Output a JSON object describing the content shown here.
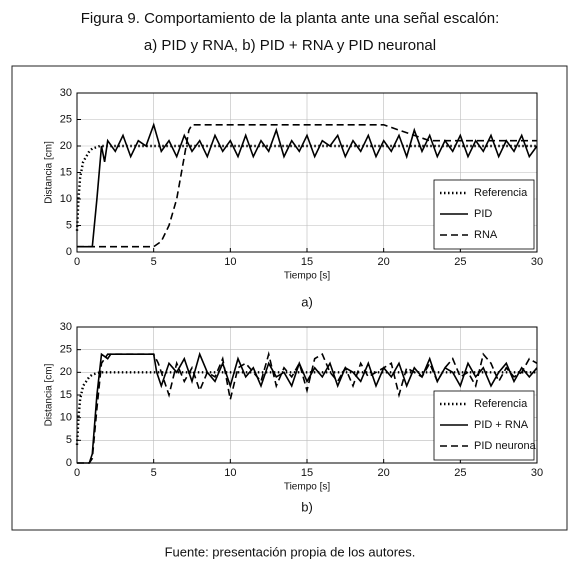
{
  "figure": {
    "title": [
      "Figura 9. Comportamiento de la planta ante una señal escalón:",
      "a) PID y RNA, b) PID + RNA y PID neuronal"
    ],
    "source": "Fuente: presentación propia de los autores."
  },
  "chart_data": [
    {
      "type": "line",
      "caption": "a)",
      "xlabel": "Tiempo [s]",
      "ylabel": "Distancia [cm]",
      "xlim": [
        0,
        30
      ],
      "ylim": [
        0,
        30
      ],
      "xticks": [
        0,
        5,
        10,
        15,
        20,
        25,
        30
      ],
      "yticks": [
        0,
        5,
        10,
        15,
        20,
        25,
        30
      ],
      "grid": true,
      "legend": "lower right",
      "series": [
        {
          "name": "Referencia",
          "color": "#000000",
          "linestyle": "dotted",
          "x": [
            0,
            0.1,
            0.2,
            0.4,
            0.6,
            0.8,
            1,
            1.5,
            2,
            3,
            30
          ],
          "values": [
            4,
            10,
            14,
            17,
            18,
            19,
            19.5,
            20,
            20,
            20,
            20
          ]
        },
        {
          "name": "PID",
          "color": "#000000",
          "linestyle": "solid",
          "x": [
            0,
            1,
            1.3,
            1.6,
            1.8,
            2,
            2.5,
            3,
            3.5,
            4,
            4.5,
            5,
            5.5,
            6,
            6.5,
            7,
            7.5,
            8,
            8.5,
            9,
            9.5,
            10,
            10.5,
            11,
            11.5,
            12,
            12.5,
            13,
            13.5,
            14,
            14.5,
            15,
            15.5,
            16,
            16.5,
            17,
            17.5,
            18,
            18.5,
            19,
            19.5,
            20,
            20.5,
            21,
            21.5,
            22,
            22.5,
            23,
            23.5,
            24,
            24.5,
            25,
            25.5,
            26,
            26.5,
            27,
            27.5,
            28,
            28.5,
            29,
            29.5,
            30
          ],
          "values": [
            1,
            1,
            10,
            20,
            17,
            21,
            19,
            22,
            18,
            21,
            20,
            24,
            19,
            21,
            18,
            22,
            19,
            21,
            18,
            22,
            19,
            21,
            18,
            22,
            18,
            21,
            19,
            23,
            18,
            21,
            19,
            22,
            18,
            21,
            20,
            22,
            18,
            21,
            19,
            22,
            18,
            21,
            19,
            22,
            18,
            23,
            19,
            22,
            18,
            21,
            19,
            22,
            18,
            21,
            19,
            22,
            18,
            21,
            19,
            22,
            18,
            20
          ]
        },
        {
          "name": "RNA",
          "color": "#000000",
          "linestyle": "dashed",
          "x": [
            0,
            5,
            5.5,
            6,
            6.5,
            7,
            7.3,
            7.5,
            20,
            21,
            22,
            23,
            30
          ],
          "values": [
            1,
            1,
            2,
            5,
            10,
            18,
            23,
            24,
            24,
            23,
            22,
            21,
            21
          ]
        }
      ]
    },
    {
      "type": "line",
      "caption": "b)",
      "xlabel": "Tiempo [s]",
      "ylabel": "Distancia [cm]",
      "xlim": [
        0,
        30
      ],
      "ylim": [
        0,
        30
      ],
      "xticks": [
        0,
        5,
        10,
        15,
        20,
        25,
        30
      ],
      "yticks": [
        0,
        5,
        10,
        15,
        20,
        25,
        30
      ],
      "grid": true,
      "legend": "lower right",
      "series": [
        {
          "name": "Referencia",
          "color": "#000000",
          "linestyle": "dotted",
          "x": [
            0,
            0.1,
            0.2,
            0.4,
            0.6,
            0.8,
            1,
            1.5,
            2,
            3,
            30
          ],
          "values": [
            4,
            10,
            14,
            17,
            18,
            19,
            19.5,
            20,
            20,
            20,
            20
          ]
        },
        {
          "name": "PID + RNA",
          "color": "#000000",
          "linestyle": "solid",
          "x": [
            0,
            0.8,
            1,
            1.3,
            1.6,
            2,
            2.2,
            5,
            5.2,
            5.5,
            6,
            6.5,
            7,
            7.5,
            8,
            8.5,
            9,
            9.5,
            10,
            10.5,
            11,
            11.5,
            12,
            12.5,
            13,
            13.5,
            14,
            14.5,
            15,
            15.5,
            16,
            16.5,
            17,
            17.5,
            18,
            18.5,
            19,
            19.5,
            20,
            20.5,
            21,
            21.5,
            22,
            22.5,
            23,
            23.5,
            24,
            24.5,
            25,
            25.5,
            26,
            26.5,
            27,
            27.5,
            28,
            28.5,
            29,
            29.5,
            30
          ],
          "values": [
            0,
            0,
            2,
            15,
            24,
            23,
            24,
            24,
            20,
            17,
            22,
            20,
            23,
            18,
            24,
            20,
            18,
            22,
            17,
            23,
            19,
            21,
            17,
            22,
            19,
            20,
            17,
            22,
            18,
            21,
            19,
            22,
            17,
            21,
            20,
            18,
            22,
            17,
            21,
            19,
            22,
            17,
            21,
            19,
            23,
            18,
            21,
            20,
            17,
            22,
            19,
            21,
            17,
            20,
            22,
            18,
            21,
            19,
            21
          ]
        },
        {
          "name": "PID neuronal",
          "color": "#000000",
          "linestyle": "dashed",
          "x": [
            0,
            0.8,
            1,
            1.3,
            1.6,
            2,
            2.2,
            5,
            5.3,
            5.5,
            6,
            6.5,
            7,
            7.5,
            8,
            8.5,
            9,
            9.5,
            10,
            10.5,
            11,
            11.5,
            12,
            12.5,
            13,
            13.5,
            14,
            14.5,
            15,
            15.5,
            16,
            16.5,
            17,
            17.5,
            18,
            18.5,
            19,
            19.5,
            20,
            20.5,
            21,
            21.5,
            22,
            22.5,
            23,
            23.5,
            24,
            24.5,
            25,
            25.5,
            26,
            26.5,
            27,
            27.5,
            28,
            28.5,
            29,
            29.5,
            30
          ],
          "values": [
            0,
            0,
            1,
            12,
            22,
            24,
            24,
            24,
            22,
            20,
            15,
            22,
            18,
            21,
            16,
            20,
            19,
            23,
            14,
            21,
            22,
            20,
            18,
            24,
            17,
            21,
            19,
            22,
            16,
            23,
            24,
            20,
            18,
            21,
            17,
            22,
            19,
            20,
            21,
            22,
            15,
            21,
            20,
            19,
            22,
            18,
            21,
            23,
            19,
            20,
            17,
            24,
            22,
            18,
            21,
            19,
            20,
            23,
            22
          ]
        }
      ]
    }
  ]
}
